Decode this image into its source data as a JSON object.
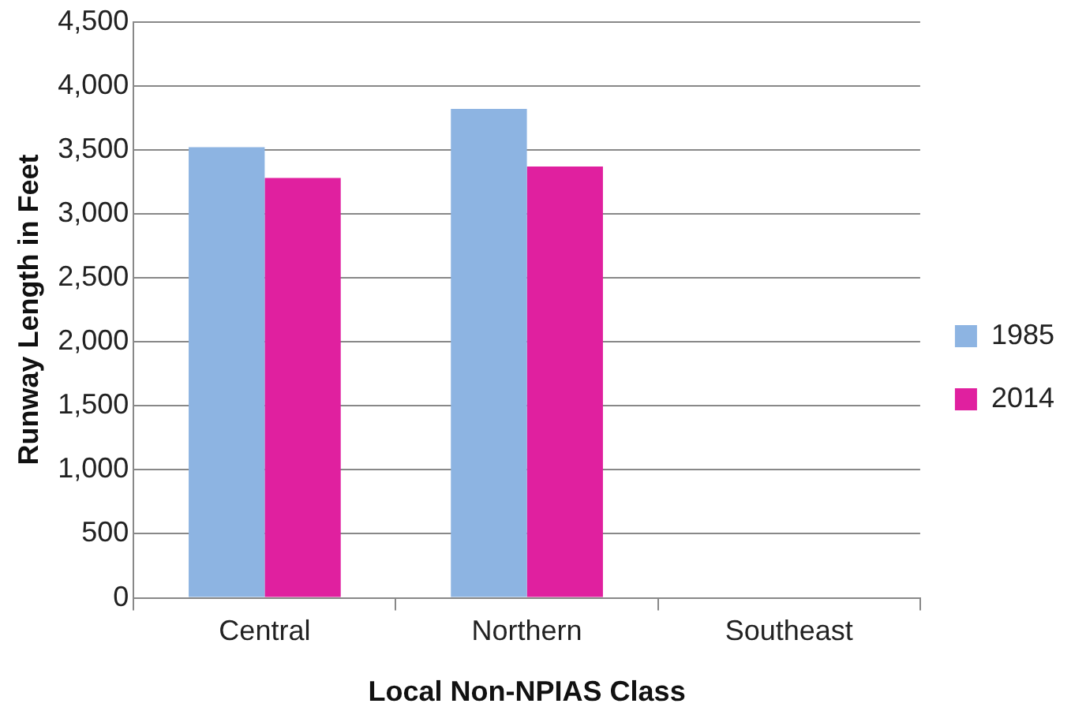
{
  "chart_data": {
    "type": "bar",
    "xlabel": "Local Non-NPIAS Class",
    "ylabel": "Runway Length in Feet",
    "categories": [
      "Central",
      "Northern",
      "Southeast"
    ],
    "series": [
      {
        "name": "1985",
        "color": "#8db4e2",
        "values": [
          3520,
          3820,
          null
        ]
      },
      {
        "name": "2014",
        "color": "#e0209f",
        "values": [
          3280,
          3370,
          null
        ]
      }
    ],
    "ylim": [
      0,
      4500
    ],
    "yticks": [
      0,
      500,
      {
        "value": 1000,
        "label": "1,000"
      },
      {
        "value": 1500,
        "label": "1,500"
      },
      {
        "value": 2000,
        "label": "2,000"
      },
      {
        "value": 2500,
        "label": "2,500"
      },
      {
        "value": 3000,
        "label": "3,000"
      },
      {
        "value": 3500,
        "label": "3,500"
      },
      {
        "value": 4000,
        "label": "4,000"
      },
      {
        "value": 4500,
        "label": "4,500"
      }
    ],
    "grid": "y",
    "legend": "right"
  }
}
